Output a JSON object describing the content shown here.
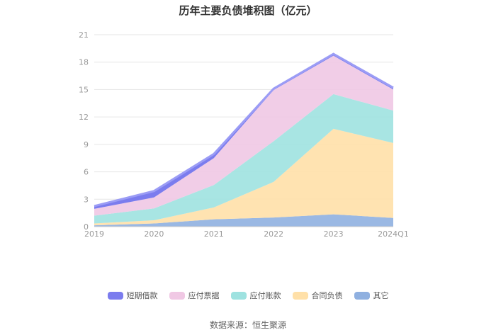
{
  "chart_data": {
    "type": "area",
    "title": "历年主要负债堆积图（亿元）",
    "stacked": true,
    "x": [
      "2019",
      "2020",
      "2021",
      "2022",
      "2023",
      "2024Q1"
    ],
    "ylim": [
      0,
      21
    ],
    "yticks": [
      0,
      3,
      6,
      9,
      12,
      15,
      18,
      21
    ],
    "grid": true,
    "legend_position": "bottom",
    "series": [
      {
        "name": "其它",
        "color": "#8fb0e0",
        "values": [
          0.15,
          0.35,
          0.8,
          1.0,
          1.35,
          0.95
        ]
      },
      {
        "name": "合同负债",
        "color": "#ffe0a8",
        "values": [
          0.2,
          0.35,
          1.3,
          3.9,
          9.35,
          8.2
        ]
      },
      {
        "name": "应付账款",
        "color": "#9ee2e0",
        "values": [
          0.85,
          1.3,
          2.45,
          4.45,
          3.8,
          3.55
        ]
      },
      {
        "name": "应付票据",
        "color": "#f0c8e4",
        "values": [
          0.75,
          1.2,
          2.95,
          5.6,
          4.2,
          2.3
        ]
      },
      {
        "name": "短期借款",
        "color": "#7b7cee",
        "values": [
          0.3,
          0.7,
          0.45,
          0.15,
          0.2,
          0.2
        ]
      }
    ],
    "legend_order": [
      "短期借款",
      "应付票据",
      "应付账款",
      "合同负债",
      "其它"
    ]
  },
  "source_text": "数据来源：恒生聚源"
}
